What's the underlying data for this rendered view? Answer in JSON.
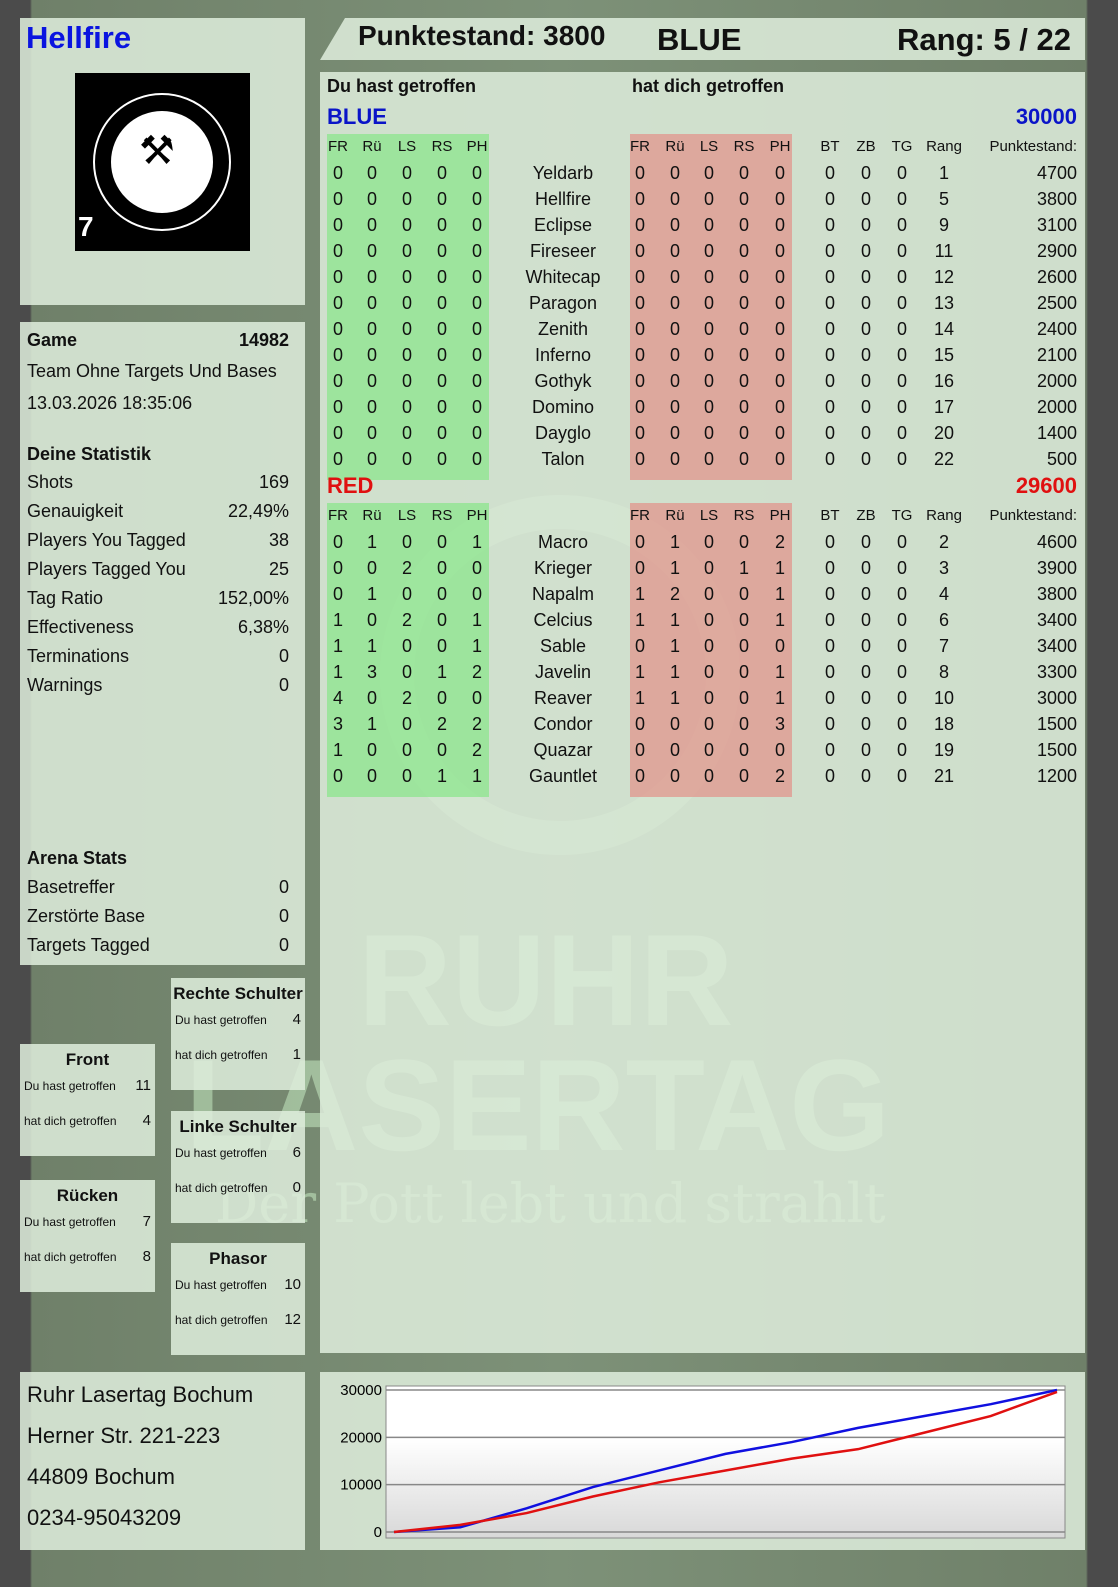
{
  "player": {
    "name": "Hellfire",
    "logo_number": "7",
    "logo_text": "RUHR LASERTAG"
  },
  "header": {
    "score": "Punktestand: 3800",
    "team": "BLUE",
    "rank": "Rang: 5 / 22"
  },
  "game": {
    "label": "Game",
    "number": "14982",
    "mode": "Team Ohne Targets Und Bases",
    "datetime": "13.03.2026 18:35:06"
  },
  "stats": {
    "title": "Deine Statistik",
    "items": [
      {
        "label": "Shots",
        "value": "169"
      },
      {
        "label": "Genauigkeit",
        "value": "22,49%"
      },
      {
        "label": "Players You Tagged",
        "value": "38"
      },
      {
        "label": "Players Tagged You",
        "value": "25"
      },
      {
        "label": "Tag Ratio",
        "value": "152,00%"
      },
      {
        "label": "Effectiveness",
        "value": "6,38%"
      },
      {
        "label": "Terminations",
        "value": "0"
      },
      {
        "label": "Warnings",
        "value": "0"
      }
    ]
  },
  "arena": {
    "title": "Arena Stats",
    "items": [
      {
        "label": "Basetreffer",
        "value": "0"
      },
      {
        "label": "Zerstörte Base",
        "value": "0"
      },
      {
        "label": "Targets Tagged",
        "value": "0"
      }
    ]
  },
  "zones": [
    {
      "title": "Rechte Schulter",
      "hit_label": "Du hast getroffen",
      "hit": "4",
      "got_label": "hat dich getroffen",
      "got": "1"
    },
    {
      "title": "Front",
      "hit_label": "Du hast getroffen",
      "hit": "11",
      "got_label": "hat dich getroffen",
      "got": "4"
    },
    {
      "title": "Linke Schulter",
      "hit_label": "Du hast getroffen",
      "hit": "6",
      "got_label": "hat dich getroffen",
      "got": "0"
    },
    {
      "title": "Rücken",
      "hit_label": "Du hast getroffen",
      "hit": "7",
      "got_label": "hat dich getroffen",
      "got": "8"
    },
    {
      "title": "Phasor",
      "hit_label": "Du hast getroffen",
      "hit": "10",
      "got_label": "hat dich getroffen",
      "got": "12"
    }
  ],
  "address": [
    "Ruhr Lasertag Bochum",
    "Herner Str. 221-223",
    "44809 Bochum",
    "0234-95043209"
  ],
  "table": {
    "hit_title": "Du hast getroffen",
    "got_title": "hat dich getroffen",
    "columns": [
      "FR",
      "Rü",
      "LS",
      "RS",
      "PH",
      "BT",
      "ZB",
      "TG",
      "Rang",
      "Punktestand:"
    ],
    "teams": [
      {
        "name": "BLUE",
        "score": "30000",
        "color": "#0a14c8",
        "players": [
          [
            "Yeldarb",
            [
              0,
              0,
              0,
              0,
              0
            ],
            [
              0,
              0,
              0,
              0,
              0
            ],
            [
              0,
              0,
              0
            ],
            1,
            4700
          ],
          [
            "Hellfire",
            [
              0,
              0,
              0,
              0,
              0
            ],
            [
              0,
              0,
              0,
              0,
              0
            ],
            [
              0,
              0,
              0
            ],
            5,
            3800
          ],
          [
            "Eclipse",
            [
              0,
              0,
              0,
              0,
              0
            ],
            [
              0,
              0,
              0,
              0,
              0
            ],
            [
              0,
              0,
              0
            ],
            9,
            3100
          ],
          [
            "Fireseer",
            [
              0,
              0,
              0,
              0,
              0
            ],
            [
              0,
              0,
              0,
              0,
              0
            ],
            [
              0,
              0,
              0
            ],
            11,
            2900
          ],
          [
            "Whitecap",
            [
              0,
              0,
              0,
              0,
              0
            ],
            [
              0,
              0,
              0,
              0,
              0
            ],
            [
              0,
              0,
              0
            ],
            12,
            2600
          ],
          [
            "Paragon",
            [
              0,
              0,
              0,
              0,
              0
            ],
            [
              0,
              0,
              0,
              0,
              0
            ],
            [
              0,
              0,
              0
            ],
            13,
            2500
          ],
          [
            "Zenith",
            [
              0,
              0,
              0,
              0,
              0
            ],
            [
              0,
              0,
              0,
              0,
              0
            ],
            [
              0,
              0,
              0
            ],
            14,
            2400
          ],
          [
            "Inferno",
            [
              0,
              0,
              0,
              0,
              0
            ],
            [
              0,
              0,
              0,
              0,
              0
            ],
            [
              0,
              0,
              0
            ],
            15,
            2100
          ],
          [
            "Gothyk",
            [
              0,
              0,
              0,
              0,
              0
            ],
            [
              0,
              0,
              0,
              0,
              0
            ],
            [
              0,
              0,
              0
            ],
            16,
            2000
          ],
          [
            "Domino",
            [
              0,
              0,
              0,
              0,
              0
            ],
            [
              0,
              0,
              0,
              0,
              0
            ],
            [
              0,
              0,
              0
            ],
            17,
            2000
          ],
          [
            "Dayglo",
            [
              0,
              0,
              0,
              0,
              0
            ],
            [
              0,
              0,
              0,
              0,
              0
            ],
            [
              0,
              0,
              0
            ],
            20,
            1400
          ],
          [
            "Talon",
            [
              0,
              0,
              0,
              0,
              0
            ],
            [
              0,
              0,
              0,
              0,
              0
            ],
            [
              0,
              0,
              0
            ],
            22,
            500
          ]
        ]
      },
      {
        "name": "RED",
        "score": "29600",
        "color": "#e01010",
        "players": [
          [
            "Macro",
            [
              0,
              1,
              0,
              0,
              1
            ],
            [
              0,
              1,
              0,
              0,
              2
            ],
            [
              0,
              0,
              0
            ],
            2,
            4600
          ],
          [
            "Krieger",
            [
              0,
              0,
              2,
              0,
              0
            ],
            [
              0,
              1,
              0,
              1,
              1
            ],
            [
              0,
              0,
              0
            ],
            3,
            3900
          ],
          [
            "Napalm",
            [
              0,
              1,
              0,
              0,
              0
            ],
            [
              1,
              2,
              0,
              0,
              1
            ],
            [
              0,
              0,
              0
            ],
            4,
            3800
          ],
          [
            "Celcius",
            [
              1,
              0,
              2,
              0,
              1
            ],
            [
              1,
              1,
              0,
              0,
              1
            ],
            [
              0,
              0,
              0
            ],
            6,
            3400
          ],
          [
            "Sable",
            [
              1,
              1,
              0,
              0,
              1
            ],
            [
              0,
              1,
              0,
              0,
              0
            ],
            [
              0,
              0,
              0
            ],
            7,
            3400
          ],
          [
            "Javelin",
            [
              1,
              3,
              0,
              1,
              2
            ],
            [
              1,
              1,
              0,
              0,
              1
            ],
            [
              0,
              0,
              0
            ],
            8,
            3300
          ],
          [
            "Reaver",
            [
              4,
              0,
              2,
              0,
              0
            ],
            [
              1,
              1,
              0,
              0,
              1
            ],
            [
              0,
              0,
              0
            ],
            10,
            3000
          ],
          [
            "Condor",
            [
              3,
              1,
              0,
              2,
              2
            ],
            [
              0,
              0,
              0,
              0,
              3
            ],
            [
              0,
              0,
              0
            ],
            18,
            1500
          ],
          [
            "Quazar",
            [
              1,
              0,
              0,
              0,
              2
            ],
            [
              0,
              0,
              0,
              0,
              0
            ],
            [
              0,
              0,
              0
            ],
            19,
            1500
          ],
          [
            "Gauntlet",
            [
              0,
              0,
              0,
              1,
              1
            ],
            [
              0,
              0,
              0,
              0,
              2
            ],
            [
              0,
              0,
              0
            ],
            21,
            1200
          ]
        ]
      }
    ]
  },
  "watermark": {
    "line1": "RUHR",
    "line2": "LASERTAG",
    "slogan": "Der Pott lebt und strahlt"
  },
  "chart_data": {
    "type": "line",
    "ylim": [
      0,
      30000
    ],
    "yticks": [
      "30000",
      "20000",
      "10000",
      "0"
    ],
    "grid": true,
    "x": [
      0,
      1,
      2,
      3,
      4,
      5,
      6,
      7,
      8,
      9,
      10
    ],
    "series": [
      {
        "color": "#1010e0",
        "values": [
          0,
          1000,
          5000,
          9500,
          13000,
          16500,
          19000,
          22000,
          24500,
          27000,
          30000
        ]
      },
      {
        "color": "#e01010",
        "values": [
          0,
          1500,
          4000,
          7500,
          10500,
          13000,
          15500,
          17500,
          21000,
          24500,
          29600
        ]
      }
    ]
  }
}
